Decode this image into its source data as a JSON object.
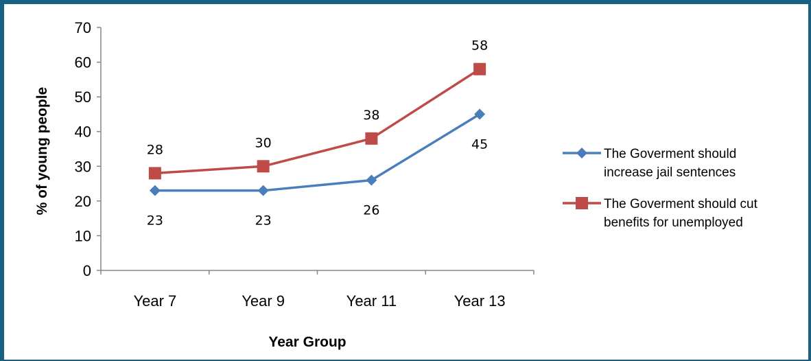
{
  "colors": {
    "frame": "#17607f",
    "series1": "#4a7ebb",
    "series2": "#be4b48"
  },
  "chart_data": {
    "type": "line",
    "xlabel": "Year Group",
    "ylabel": "% of young people",
    "ylim": [
      0,
      70
    ],
    "ytick_step": 10,
    "yticks": [
      "0",
      "10",
      "20",
      "30",
      "40",
      "50",
      "60",
      "70"
    ],
    "grid": false,
    "legend_position": "right",
    "categories": [
      "Year 7",
      "Year 9",
      "Year 11",
      "Year 13"
    ],
    "series": [
      {
        "name_line1": "The Goverment should",
        "name_line2": "increase jail sentences",
        "marker": "diamond",
        "color": "#4a7ebb",
        "label_position": "below",
        "values": [
          23,
          23,
          26,
          45
        ]
      },
      {
        "name_line1": "The Goverment should cut",
        "name_line2": "benefits for unemployed",
        "marker": "square",
        "color": "#be4b48",
        "label_position": "above",
        "values": [
          28,
          30,
          38,
          58
        ]
      }
    ]
  }
}
